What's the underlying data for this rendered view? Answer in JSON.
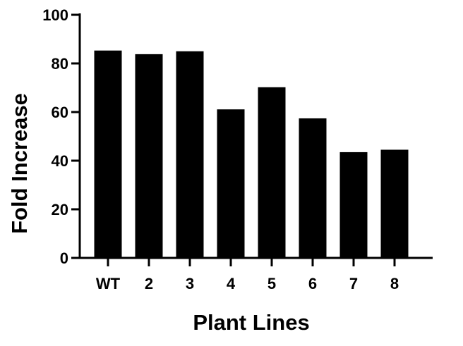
{
  "chart_data": {
    "type": "bar",
    "title": "",
    "xlabel": "Plant Lines",
    "ylabel": "Fold Increase",
    "categories": [
      "WT",
      "2",
      "3",
      "4",
      "5",
      "6",
      "7",
      "8"
    ],
    "values": [
      85.3,
      83.8,
      85.0,
      61.1,
      70.2,
      57.4,
      43.5,
      44.5
    ],
    "ylim": [
      0,
      100
    ],
    "yticks": [
      0,
      20,
      40,
      60,
      80,
      100
    ],
    "grid": false,
    "bar_color": "#000000"
  }
}
